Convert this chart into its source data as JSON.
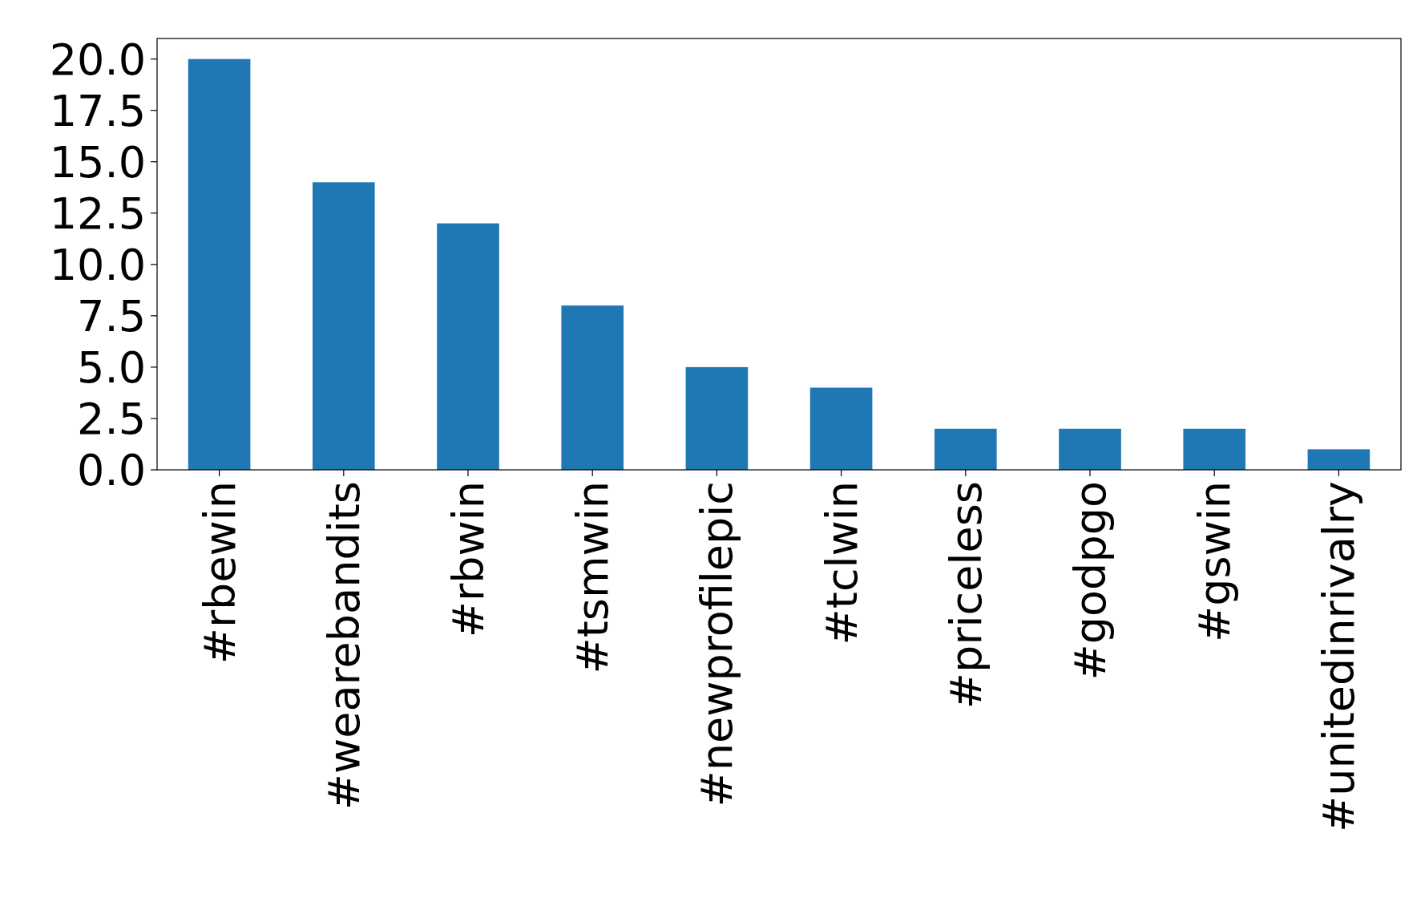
{
  "chart_data": {
    "type": "bar",
    "categories": [
      "#rbewin",
      "#wearebandits",
      "#rbwin",
      "#tsmwin",
      "#newprofilepic",
      "#tclwin",
      "#priceless",
      "#godpgo",
      "#gswin",
      "#unitedinrivalry"
    ],
    "values": [
      20,
      14,
      12,
      8,
      5,
      4,
      2,
      2,
      2,
      1
    ],
    "color": "#1f77b4",
    "ylim": [
      0,
      21
    ],
    "yticks": [
      {
        "value": 0,
        "label": "0.0"
      },
      {
        "value": 2.5,
        "label": "2.5"
      },
      {
        "value": 5,
        "label": "5.0"
      },
      {
        "value": 7.5,
        "label": "7.5"
      },
      {
        "value": 10,
        "label": "10.0"
      },
      {
        "value": 12.5,
        "label": "12.5"
      },
      {
        "value": 15,
        "label": "15.0"
      },
      {
        "value": 17.5,
        "label": "17.5"
      },
      {
        "value": 20,
        "label": "20.0"
      }
    ]
  }
}
